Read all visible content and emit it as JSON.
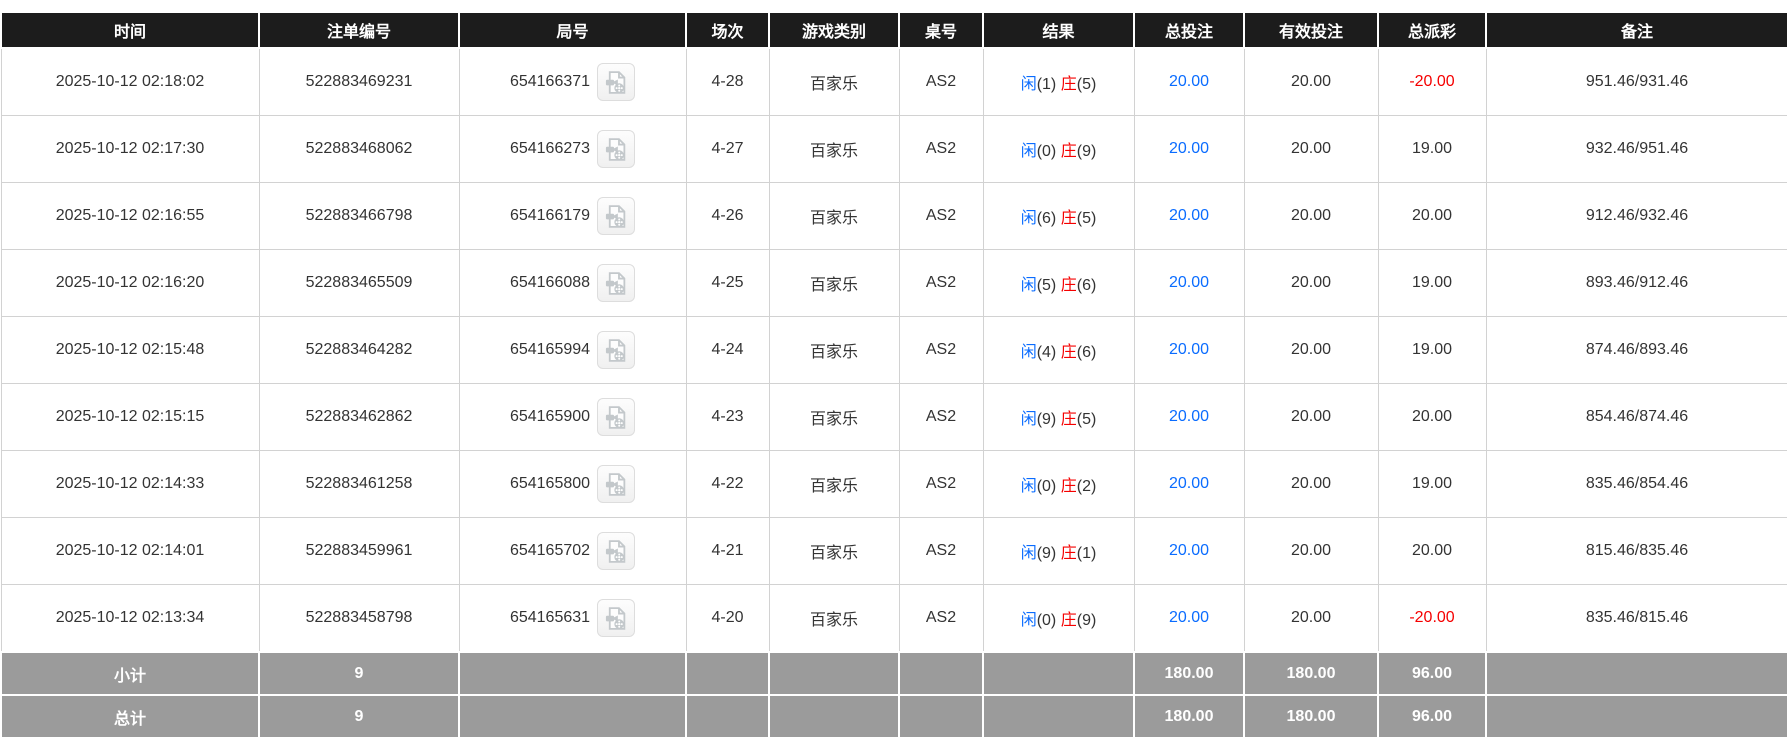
{
  "table": {
    "columns": [
      {
        "key": "time",
        "label": "时间"
      },
      {
        "key": "order",
        "label": "注单编号"
      },
      {
        "key": "round",
        "label": "局号"
      },
      {
        "key": "session",
        "label": "场次"
      },
      {
        "key": "game",
        "label": "游戏类别"
      },
      {
        "key": "table_no",
        "label": "桌号"
      },
      {
        "key": "result",
        "label": "结果"
      },
      {
        "key": "total_bet",
        "label": "总投注"
      },
      {
        "key": "valid_bet",
        "label": "有效投注"
      },
      {
        "key": "payout",
        "label": "总派彩"
      },
      {
        "key": "remark",
        "label": "备注"
      }
    ],
    "icons": {
      "round_video_icon": "video-file-icon"
    },
    "colors": {
      "header_bg": "#1c1c1c",
      "summary_bg": "#9b9b9b",
      "link_blue": "#0a6cff",
      "loss_red": "#f50000",
      "body_text": "#333333"
    },
    "rows": [
      {
        "time": "2025-10-12 02:18:02",
        "order_no": "522883469231",
        "round_no": "654166371",
        "session": "4-28",
        "game_type": "百家乐",
        "table_no": "AS2",
        "result": {
          "player_label": "闲",
          "player_points": "1",
          "banker_label": "庄",
          "banker_points": "5"
        },
        "total_bet": "20.00",
        "valid_bet": "20.00",
        "payout": "-20.00",
        "remark": "951.46/931.46"
      },
      {
        "time": "2025-10-12 02:17:30",
        "order_no": "522883468062",
        "round_no": "654166273",
        "session": "4-27",
        "game_type": "百家乐",
        "table_no": "AS2",
        "result": {
          "player_label": "闲",
          "player_points": "0",
          "banker_label": "庄",
          "banker_points": "9"
        },
        "total_bet": "20.00",
        "valid_bet": "20.00",
        "payout": "19.00",
        "remark": "932.46/951.46"
      },
      {
        "time": "2025-10-12 02:16:55",
        "order_no": "522883466798",
        "round_no": "654166179",
        "session": "4-26",
        "game_type": "百家乐",
        "table_no": "AS2",
        "result": {
          "player_label": "闲",
          "player_points": "6",
          "banker_label": "庄",
          "banker_points": "5"
        },
        "total_bet": "20.00",
        "valid_bet": "20.00",
        "payout": "20.00",
        "remark": "912.46/932.46"
      },
      {
        "time": "2025-10-12 02:16:20",
        "order_no": "522883465509",
        "round_no": "654166088",
        "session": "4-25",
        "game_type": "百家乐",
        "table_no": "AS2",
        "result": {
          "player_label": "闲",
          "player_points": "5",
          "banker_label": "庄",
          "banker_points": "6"
        },
        "total_bet": "20.00",
        "valid_bet": "20.00",
        "payout": "19.00",
        "remark": "893.46/912.46"
      },
      {
        "time": "2025-10-12 02:15:48",
        "order_no": "522883464282",
        "round_no": "654165994",
        "session": "4-24",
        "game_type": "百家乐",
        "table_no": "AS2",
        "result": {
          "player_label": "闲",
          "player_points": "4",
          "banker_label": "庄",
          "banker_points": "6"
        },
        "total_bet": "20.00",
        "valid_bet": "20.00",
        "payout": "19.00",
        "remark": "874.46/893.46"
      },
      {
        "time": "2025-10-12 02:15:15",
        "order_no": "522883462862",
        "round_no": "654165900",
        "session": "4-23",
        "game_type": "百家乐",
        "table_no": "AS2",
        "result": {
          "player_label": "闲",
          "player_points": "9",
          "banker_label": "庄",
          "banker_points": "5"
        },
        "total_bet": "20.00",
        "valid_bet": "20.00",
        "payout": "20.00",
        "remark": "854.46/874.46"
      },
      {
        "time": "2025-10-12 02:14:33",
        "order_no": "522883461258",
        "round_no": "654165800",
        "session": "4-22",
        "game_type": "百家乐",
        "table_no": "AS2",
        "result": {
          "player_label": "闲",
          "player_points": "0",
          "banker_label": "庄",
          "banker_points": "2"
        },
        "total_bet": "20.00",
        "valid_bet": "20.00",
        "payout": "19.00",
        "remark": "835.46/854.46"
      },
      {
        "time": "2025-10-12 02:14:01",
        "order_no": "522883459961",
        "round_no": "654165702",
        "session": "4-21",
        "game_type": "百家乐",
        "table_no": "AS2",
        "result": {
          "player_label": "闲",
          "player_points": "9",
          "banker_label": "庄",
          "banker_points": "1"
        },
        "total_bet": "20.00",
        "valid_bet": "20.00",
        "payout": "20.00",
        "remark": "815.46/835.46"
      },
      {
        "time": "2025-10-12 02:13:34",
        "order_no": "522883458798",
        "round_no": "654165631",
        "session": "4-20",
        "game_type": "百家乐",
        "table_no": "AS2",
        "result": {
          "player_label": "闲",
          "player_points": "0",
          "banker_label": "庄",
          "banker_points": "9"
        },
        "total_bet": "20.00",
        "valid_bet": "20.00",
        "payout": "-20.00",
        "remark": "835.46/815.46"
      }
    ],
    "summary_rows": [
      {
        "label": "小计",
        "count": "9",
        "total_bet": "180.00",
        "valid_bet": "180.00",
        "payout": "96.00"
      },
      {
        "label": "总计",
        "count": "9",
        "total_bet": "180.00",
        "valid_bet": "180.00",
        "payout": "96.00"
      }
    ]
  }
}
